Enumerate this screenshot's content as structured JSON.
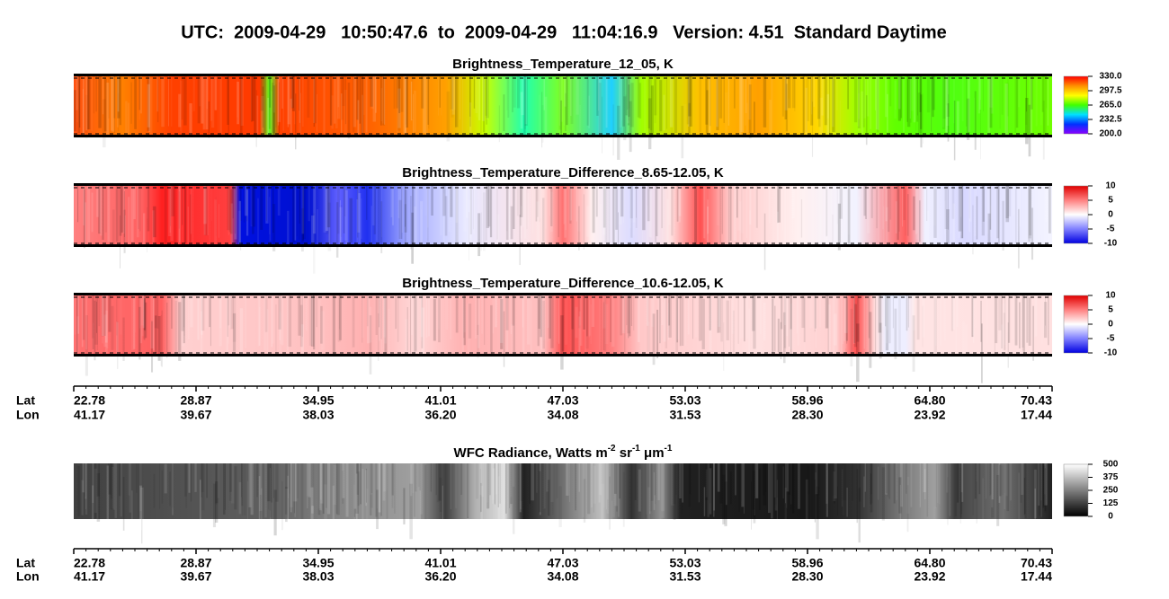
{
  "title": "UTC:  2009-04-29   10:50:47.6  to  2009-04-29   11:04:16.9   Version: 4.51  Standard Daytime",
  "chart_data": [
    {
      "type": "heatmap",
      "title": "Brightness_Temperature_12_05, K",
      "zlim": [
        200,
        330
      ],
      "zticks": [
        {
          "value": 330,
          "label": "330.0"
        },
        {
          "value": 297.5,
          "label": "297.5"
        },
        {
          "value": 265,
          "label": "265.0"
        },
        {
          "value": 232.5,
          "label": "232.5"
        },
        {
          "value": 200,
          "label": "200.0"
        }
      ],
      "colormap": [
        "#8a00ff",
        "#0030ff",
        "#00e0ff",
        "#40ff00",
        "#ffff00",
        "#ff9000",
        "#ff0000"
      ]
    },
    {
      "type": "heatmap",
      "title": "Brightness_Temperature_Difference_8.65-12.05, K",
      "zlim": [
        -10,
        10
      ],
      "zticks": [
        10,
        5,
        0,
        -5,
        -10
      ],
      "colormap": [
        "#0000e0",
        "#8080ff",
        "#ffffff",
        "#ff8080",
        "#e00000"
      ]
    },
    {
      "type": "heatmap",
      "title": "Brightness_Temperature_Difference_10.6-12.05, K",
      "zlim": [
        -10,
        10
      ],
      "zticks": [
        10,
        5,
        0,
        -5,
        -10
      ],
      "colormap": [
        "#0000e0",
        "#8080ff",
        "#ffffff",
        "#ff8080",
        "#e00000"
      ]
    },
    {
      "type": "axis",
      "rows": [
        {
          "name": "Lat",
          "labels": [
            "22.78",
            "28.87",
            "34.95",
            "41.01",
            "47.03",
            "53.03",
            "58.96",
            "64.80",
            "70.43"
          ]
        },
        {
          "name": "Lon",
          "labels": [
            "41.17",
            "39.67",
            "38.03",
            "36.20",
            "34.08",
            "31.53",
            "28.30",
            "23.92",
            "17.44"
          ]
        }
      ]
    },
    {
      "type": "heatmap",
      "title": [
        "WFC Radiance, Watts m",
        "-2",
        " sr",
        "-1",
        " μm",
        "-1"
      ],
      "zlim": [
        0,
        500
      ],
      "zticks": [
        500,
        375,
        250,
        125,
        0
      ],
      "colormap": [
        "#000000",
        "#ffffff"
      ]
    },
    {
      "type": "axis",
      "rows": [
        {
          "name": "Lat",
          "labels": [
            "22.78",
            "28.87",
            "34.95",
            "41.01",
            "47.03",
            "53.03",
            "58.96",
            "64.80",
            "70.43"
          ]
        },
        {
          "name": "Lon",
          "labels": [
            "41.17",
            "39.67",
            "38.03",
            "36.20",
            "34.08",
            "31.53",
            "28.30",
            "23.92",
            "17.44"
          ]
        }
      ]
    }
  ]
}
